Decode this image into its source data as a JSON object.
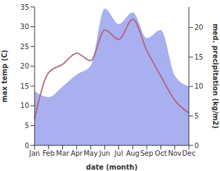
{
  "chart_data": {
    "type": "line",
    "x_label": "date (month)",
    "y_label": "max temp (C)",
    "y2_label": "med. precipitation (kg/m2)",
    "categories": [
      "Jan",
      "Feb",
      "Mar",
      "Apr",
      "May",
      "Jun",
      "Jul",
      "Aug",
      "Sep",
      "Oct",
      "Nov",
      "Dec"
    ],
    "ylim": [
      0,
      35
    ],
    "yticks": [
      0,
      5,
      10,
      15,
      20,
      25,
      30,
      35
    ],
    "y2lim": [
      0,
      23.5
    ],
    "y2ticks": [
      0,
      5,
      10,
      15,
      20
    ],
    "series": [
      {
        "type": "area",
        "axis": "y2",
        "color": "#a8b0f0",
        "values": [
          9.2,
          8.2,
          10,
          12,
          13.5,
          23.2,
          20.6,
          22.6,
          18.2,
          19.6,
          11.8,
          10
        ]
      },
      {
        "type": "line",
        "color": "#b5607a",
        "values": [
          6.7,
          18.4,
          20.5,
          23.3,
          21.4,
          29.2,
          26.8,
          31.9,
          24,
          17.5,
          11.4,
          8.2
        ]
      }
    ]
  }
}
